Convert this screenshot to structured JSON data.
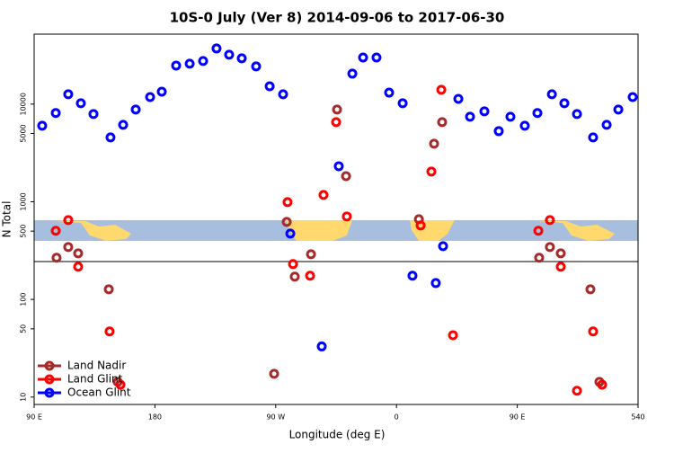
{
  "chart_data": {
    "type": "scatter",
    "title": "10S-0 July (Ver 8)   2014-09-06 to 2017-06-30",
    "x_label": "Longitude (deg E)",
    "y_label": "N Total",
    "xlim": [
      90,
      540
    ],
    "xticks": [
      {
        "value": 90,
        "label": "90 E"
      },
      180,
      {
        "value": 270,
        "label": "90 W"
      },
      {
        "value": 360,
        "label": "0"
      },
      {
        "value": 450,
        "label": "90 E"
      },
      540
    ],
    "ylim": [
      8.4,
      52000
    ],
    "yticks": [
      10,
      50,
      100,
      500,
      1000,
      5000,
      10000
    ],
    "log_y": true,
    "legend": "bottom-left",
    "series": [
      {
        "name": "Land Nadir",
        "color": "#a52a2a",
        "x": [
          106.7,
          115.4,
          122.8,
          145.6,
          152.3,
          268.8,
          278.2,
          284.2,
          296.3,
          315.7,
          322.4,
          376.7,
          388.0,
          394.0,
          466.3,
          474.3,
          482.4,
          504.5,
          511.2
        ],
        "values": [
          267,
          344,
          296,
          127,
          14.3,
          17.3,
          622,
          171,
          290,
          8790,
          1830,
          663,
          3930,
          6530,
          267,
          344,
          296,
          127,
          14.3
        ]
      },
      {
        "name": "Land Glint",
        "color": "#ff0000",
        "x": [
          106.1,
          115.4,
          122.8,
          146.2,
          154.3,
          278.8,
          282.9,
          295.6,
          305.6,
          315.0,
          323.0,
          378.0,
          386.0,
          393.4,
          402.1,
          465.7,
          474.3,
          482.4,
          506.5,
          513.2,
          494.5
        ],
        "values": [
          504,
          649,
          216,
          47,
          13.4,
          991,
          230,
          175,
          1175,
          6530,
          707,
          572,
          2040,
          14000,
          43,
          504,
          649,
          216,
          47,
          13.4,
          11.6
        ]
      },
      {
        "name": "Ocean Glint",
        "color": "#0000ff",
        "x": [
          96.0,
          106.1,
          115.4,
          124.8,
          134.2,
          146.9,
          156.3,
          165.7,
          176.4,
          185.1,
          195.8,
          205.9,
          215.9,
          225.9,
          235.3,
          244.7,
          255.4,
          265.5,
          275.5,
          280.9,
          304.3,
          317.0,
          327.1,
          335.1,
          345.1,
          354.5,
          364.6,
          371.9,
          389.3,
          394.7,
          406.1,
          414.8,
          425.5,
          436.2,
          444.9,
          455.6,
          465.0,
          475.8,
          485.1,
          494.5,
          506.5,
          516.6,
          525.3,
          536.0
        ],
        "values": [
          6000,
          8100,
          12600,
          10200,
          7900,
          4560,
          6130,
          8790,
          11800,
          13400,
          24800,
          25900,
          27600,
          37100,
          32000,
          29400,
          24300,
          15200,
          12600,
          472,
          33,
          2310,
          20500,
          30000,
          30000,
          13100,
          10200,
          175,
          147,
          351,
          11300,
          7420,
          8420,
          5280,
          7420,
          6000,
          8100,
          12600,
          10200,
          7900,
          4560,
          6130,
          8790,
          11800
        ]
      }
    ]
  }
}
